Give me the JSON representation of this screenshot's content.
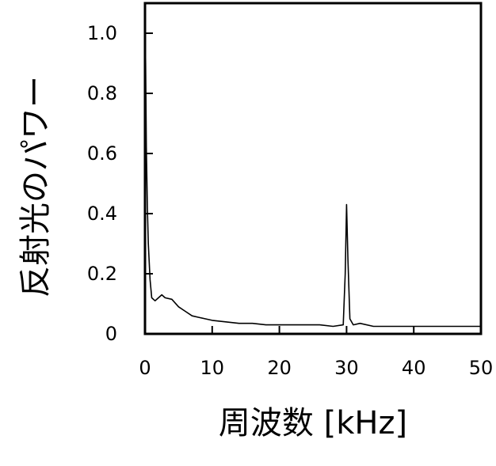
{
  "chart_data": {
    "type": "line",
    "title": "",
    "xlabel": "周波数 [kHz]",
    "ylabel": "反射光のパワー",
    "xlim": [
      0,
      50
    ],
    "ylim": [
      0,
      1.1
    ],
    "x_ticks": [
      0,
      10,
      20,
      30,
      40,
      50
    ],
    "y_ticks": [
      0,
      0.2,
      0.4,
      0.6,
      0.8,
      1.0
    ],
    "x_tick_labels": [
      "0",
      "10",
      "20",
      "30",
      "40",
      "50"
    ],
    "y_tick_labels": [
      "0",
      "0.2",
      "0.4",
      "0.6",
      "0.8",
      "1.0"
    ],
    "grid": false,
    "legend": "none",
    "line_color": "#000000",
    "series": [
      {
        "x": [
          0,
          0.1,
          0.2,
          0.35,
          0.5,
          0.75,
          1.0,
          1.5,
          2,
          2.5,
          3,
          4,
          5,
          6,
          7,
          8,
          9,
          10,
          12,
          14,
          16,
          18,
          20,
          22,
          24,
          26,
          28,
          29.5,
          29.8,
          30.0,
          30.2,
          30.5,
          31,
          32,
          34,
          36,
          38,
          40,
          42,
          44,
          46,
          48,
          50
        ],
        "y": [
          1.05,
          0.9,
          0.62,
          0.42,
          0.3,
          0.18,
          0.12,
          0.11,
          0.12,
          0.13,
          0.12,
          0.115,
          0.09,
          0.075,
          0.06,
          0.055,
          0.05,
          0.045,
          0.04,
          0.035,
          0.035,
          0.03,
          0.03,
          0.03,
          0.03,
          0.03,
          0.025,
          0.03,
          0.2,
          0.43,
          0.25,
          0.05,
          0.03,
          0.035,
          0.025,
          0.025,
          0.025,
          0.025,
          0.025,
          0.025,
          0.025,
          0.025,
          0.025
        ]
      }
    ]
  }
}
